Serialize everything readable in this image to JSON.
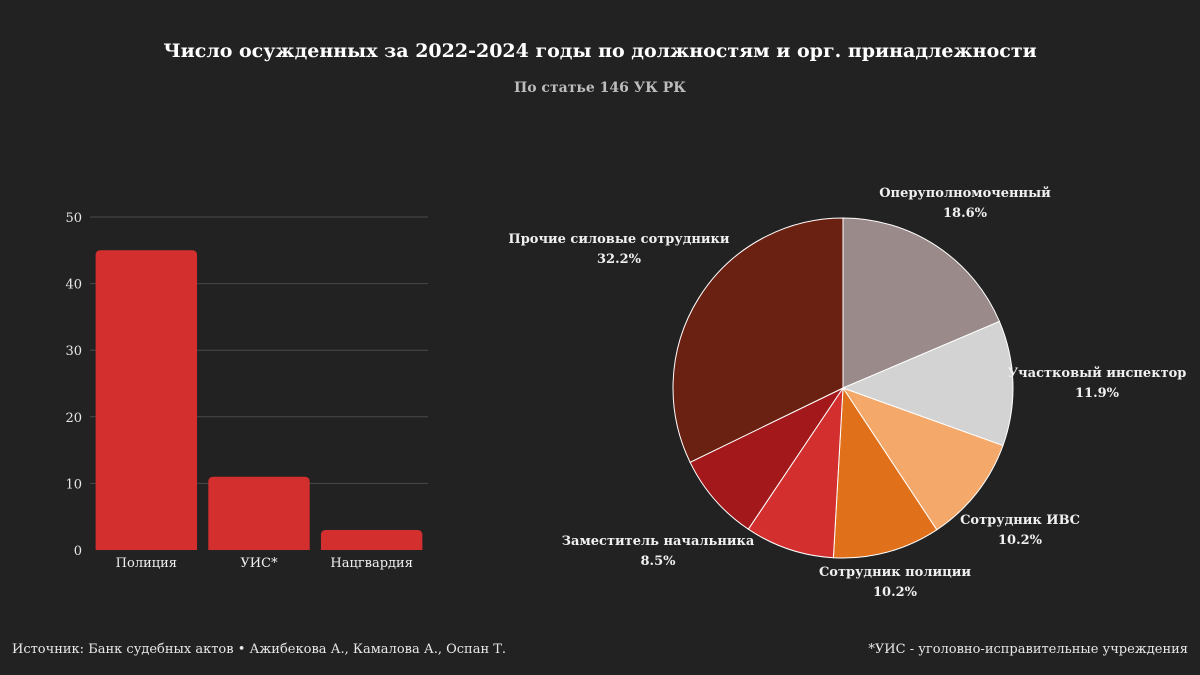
{
  "title": "Число осужденных за 2022-2024 годы по должностям и орг. принадлежности",
  "subtitle": "По статье 146 УК РК",
  "footer": {
    "source": "Источник: Банк судебных актов • Ажибекова А., Камалова А., Оспан Т.",
    "note": "*УИС - уголовно-исправительные учреждения"
  },
  "chart_data": [
    {
      "type": "bar",
      "categories": [
        "Полиция",
        "УИС*",
        "Нацгвардия"
      ],
      "values": [
        45,
        11,
        3
      ],
      "ylim": [
        0,
        50
      ],
      "yticks": [
        0,
        10,
        20,
        30,
        40,
        50
      ],
      "grid": true,
      "color": "#d32f2f"
    },
    {
      "type": "pie",
      "slices": [
        {
          "label": "Оперуполномоченный",
          "value": 18.6,
          "text": "18.6%",
          "color": "#9a8a89"
        },
        {
          "label": "Участковый инспектор",
          "value": 11.9,
          "text": "11.9%",
          "color": "#d3d3d3"
        },
        {
          "label": "Сотрудник ИВС",
          "value": 10.2,
          "text": "10.2%",
          "color": "#f4a96b"
        },
        {
          "label": "Сотрудник полиции",
          "value": 10.2,
          "text": "10.2%",
          "color": "#e1701a"
        },
        {
          "label": "Заместитель начальника",
          "value": 8.5,
          "text": "8.5%",
          "color": "#d32f2f"
        },
        {
          "label": "",
          "value": 8.4,
          "text": "",
          "color": "#a3181a"
        },
        {
          "label": "Прочие силовые сотрудники",
          "value": 32.2,
          "text": "32.2%",
          "color": "#6b2112"
        }
      ]
    }
  ]
}
